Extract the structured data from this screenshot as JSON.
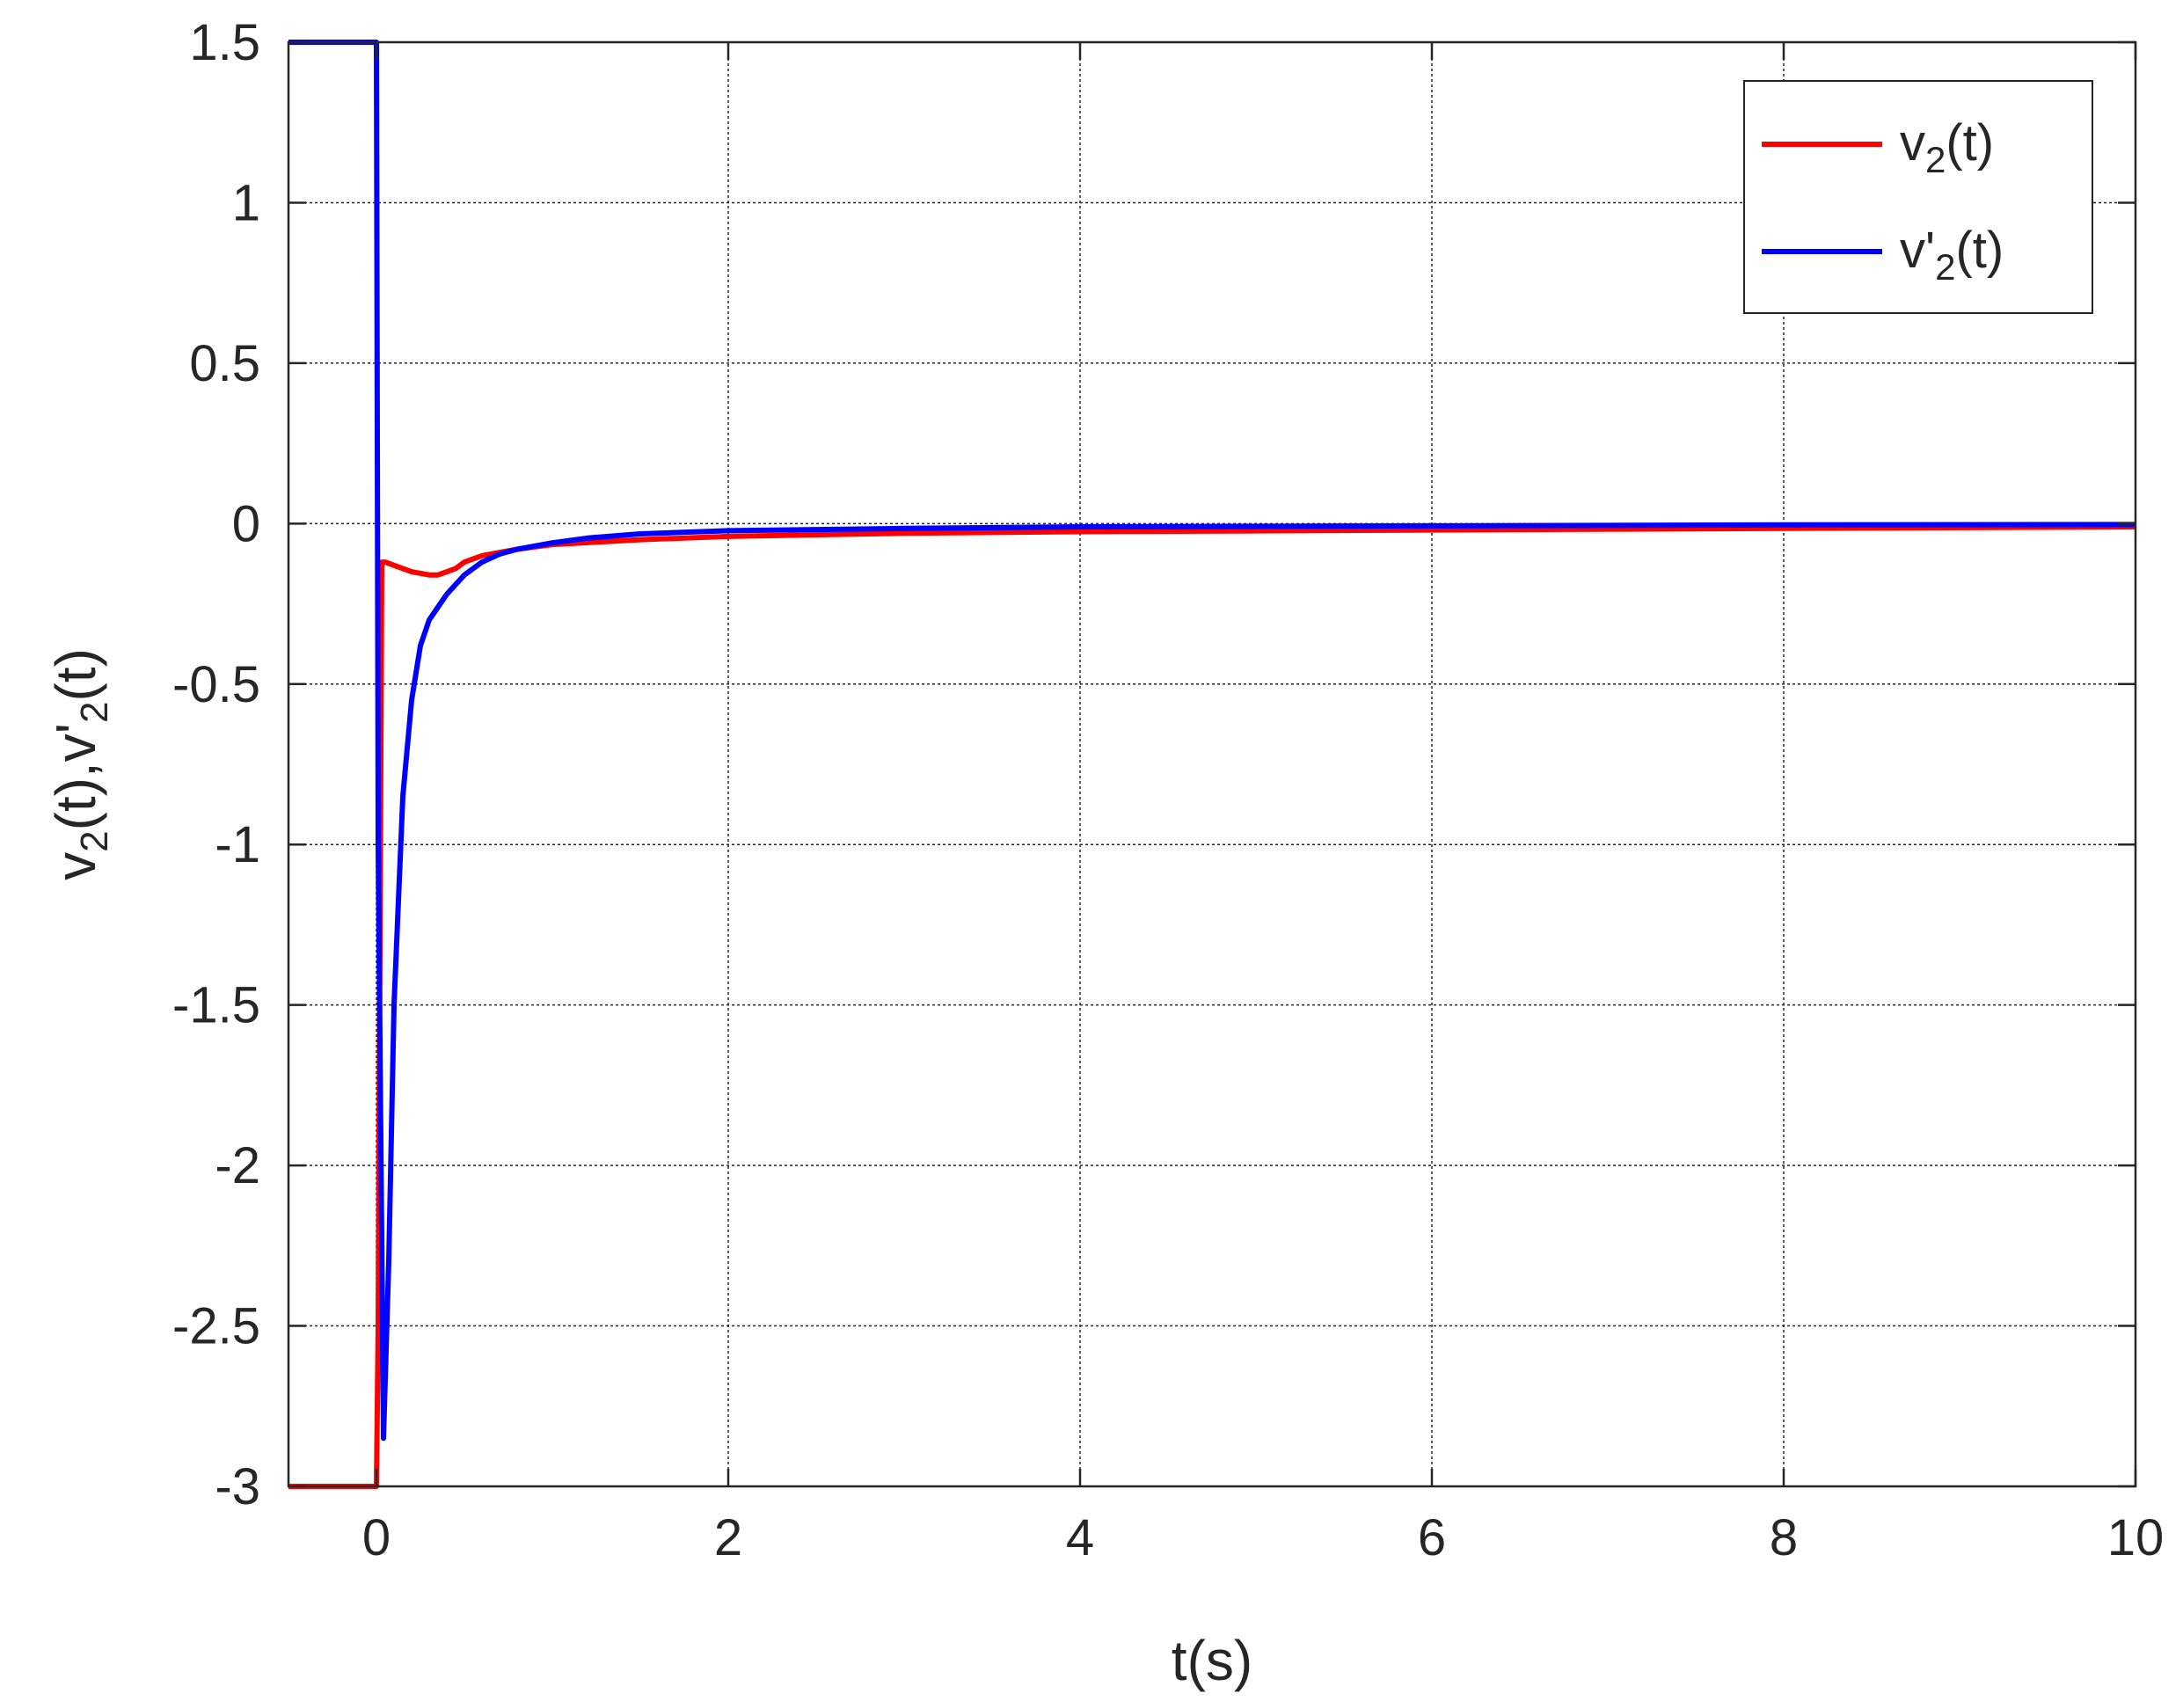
{
  "chart_data": {
    "type": "line",
    "title": "",
    "xlabel": "t(s)",
    "ylabel": {
      "base": "v",
      "sub": "2",
      "mid": "(t),v'",
      "sub2": "2",
      "end": "(t)"
    },
    "xlim": [
      -0.5,
      10
    ],
    "ylim": [
      -3,
      1.5
    ],
    "grid": true,
    "legend_placement": "top-right",
    "x_ticks": [
      0,
      2,
      4,
      6,
      8,
      10
    ],
    "x_tick_labels": [
      "0",
      "2",
      "4",
      "6",
      "8",
      "10"
    ],
    "y_ticks": [
      1.5,
      1,
      0.5,
      0,
      -0.5,
      -1,
      -1.5,
      -2,
      -2.5,
      -3
    ],
    "y_tick_labels": [
      "1.5",
      "1",
      "0.5",
      "0",
      "-0.5",
      "-1",
      "-1.5",
      "-2",
      "-2.5",
      "-3"
    ],
    "series": [
      {
        "legend": {
          "base": "v",
          "sub": "2",
          "end": "(t)"
        },
        "color": "#ff0000",
        "x": [
          -0.5,
          0.0,
          0.01,
          0.03,
          0.05,
          0.1,
          0.2,
          0.3,
          0.35,
          0.45,
          0.5,
          0.6,
          0.8,
          1.0,
          1.5,
          2.0,
          3.0,
          4.0,
          6.0,
          8.0,
          10.0
        ],
        "y": [
          -3.0,
          -3.0,
          -2.5,
          -0.12,
          -0.12,
          -0.13,
          -0.15,
          -0.16,
          -0.16,
          -0.14,
          -0.12,
          -0.1,
          -0.08,
          -0.065,
          -0.05,
          -0.04,
          -0.03,
          -0.025,
          -0.02,
          -0.015,
          -0.01
        ]
      },
      {
        "legend": {
          "base": "v'",
          "sub": "2",
          "end": "(t)"
        },
        "color": "#0000ff",
        "x": [
          -0.5,
          0.0,
          0.01,
          0.04,
          0.07,
          0.1,
          0.15,
          0.2,
          0.25,
          0.3,
          0.4,
          0.5,
          0.6,
          0.7,
          0.8,
          1.0,
          1.2,
          1.5,
          2.0,
          3.0,
          4.0,
          6.0,
          8.0,
          10.0
        ],
        "y": [
          1.5,
          1.5,
          -1.0,
          -2.85,
          -2.3,
          -1.5,
          -0.85,
          -0.55,
          -0.38,
          -0.3,
          -0.22,
          -0.16,
          -0.12,
          -0.095,
          -0.08,
          -0.06,
          -0.045,
          -0.032,
          -0.022,
          -0.015,
          -0.01,
          -0.007,
          -0.004,
          -0.003
        ]
      }
    ]
  }
}
